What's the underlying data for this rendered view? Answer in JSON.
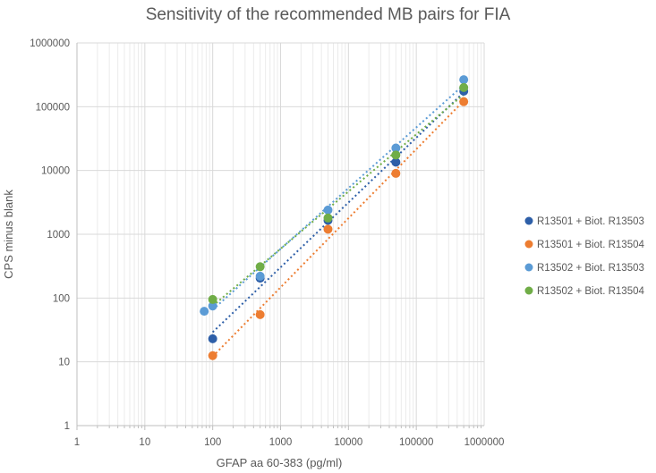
{
  "chart_data": {
    "type": "scatter",
    "title": "Sensitivity of the recommended MB pairs for FIA",
    "xlabel": "GFAP aa 60-383 (pg/ml)",
    "ylabel": "CPS minus blank",
    "xscale": "log",
    "yscale": "log",
    "xlim": [
      1,
      1000000
    ],
    "ylim": [
      1,
      1000000
    ],
    "x_ticks": [
      "1",
      "10",
      "100",
      "1000",
      "10000",
      "100000",
      "1000000"
    ],
    "y_ticks": [
      "1",
      "10",
      "100",
      "1000",
      "10000",
      "100000",
      "1000000"
    ],
    "grid": true,
    "legend_position": "right",
    "trendlines": "dotted linear fit per series",
    "series": [
      {
        "name": "R13501 + Biot. R13503",
        "color": "#2E5FA8",
        "points": [
          [
            100,
            23
          ],
          [
            500,
            205
          ],
          [
            5000,
            1650
          ],
          [
            50000,
            13500
          ],
          [
            500000,
            175000
          ]
        ]
      },
      {
        "name": "R13501 + Biot. R13504",
        "color": "#ED7D31",
        "points": [
          [
            100,
            12.5
          ],
          [
            500,
            55
          ],
          [
            5000,
            1200
          ],
          [
            50000,
            9000
          ],
          [
            500000,
            120000
          ]
        ]
      },
      {
        "name": "R13502 + Biot. R13503",
        "color": "#5B9BD5",
        "points": [
          [
            75,
            62
          ],
          [
            100,
            75
          ],
          [
            500,
            220
          ],
          [
            5000,
            2400
          ],
          [
            50000,
            22500
          ],
          [
            500000,
            265000
          ]
        ]
      },
      {
        "name": "R13502 + Biot. R13504",
        "color": "#70AD47",
        "points": [
          [
            100,
            95
          ],
          [
            500,
            310
          ],
          [
            5000,
            1800
          ],
          [
            50000,
            17500
          ],
          [
            500000,
            200000
          ]
        ]
      }
    ]
  }
}
